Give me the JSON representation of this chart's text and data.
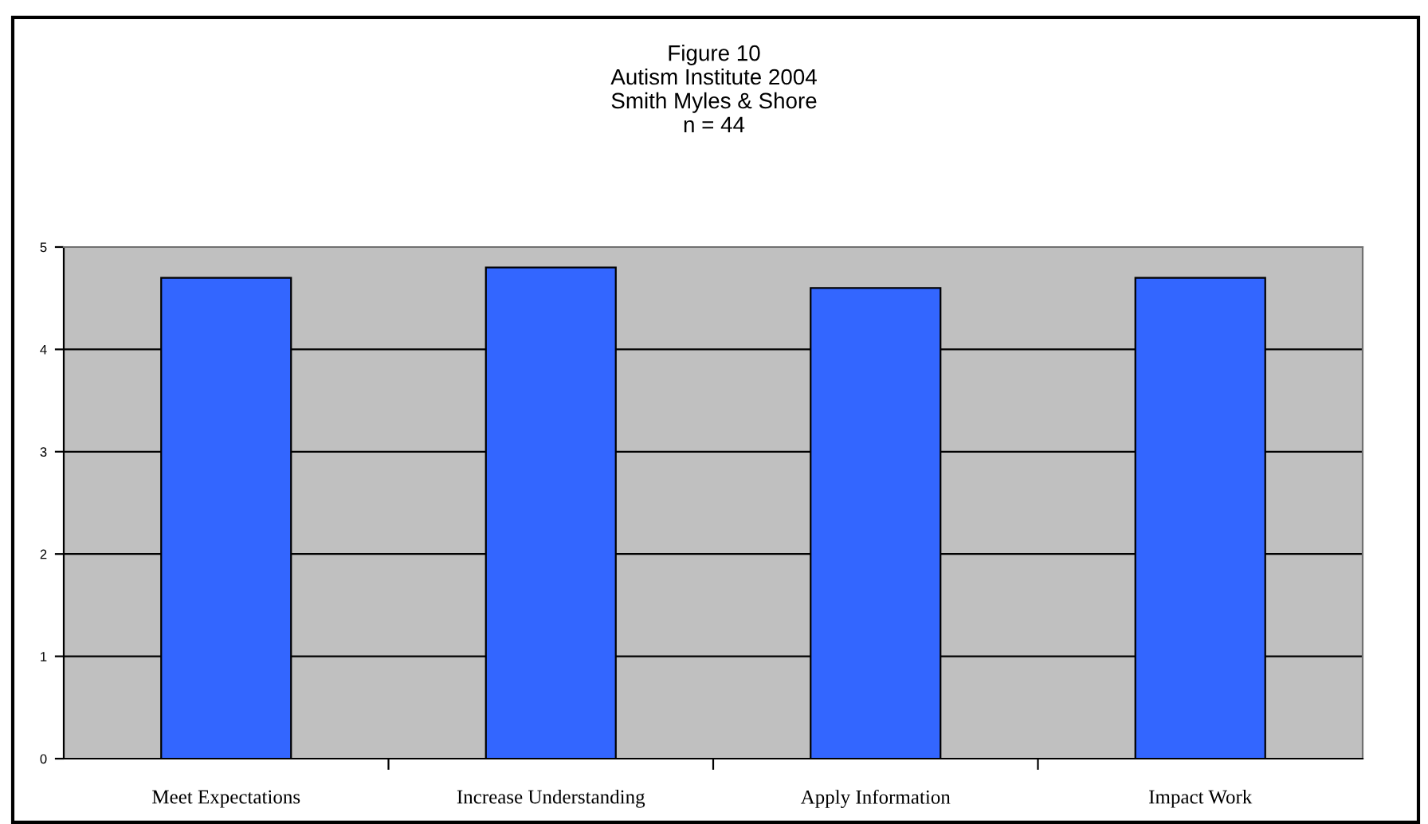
{
  "chart_data": {
    "type": "bar",
    "title": "Figure 10\nAutism Institute 2004\nSmith Myles & Shore\nn = 44",
    "categories": [
      "Meet Expectations",
      "Increase Understanding",
      "Apply Information",
      "Impact Work"
    ],
    "values": [
      4.7,
      4.8,
      4.6,
      4.7
    ],
    "color": "#3366ff",
    "ylim": [
      0,
      5
    ],
    "yticks": [
      0,
      1,
      2,
      3,
      4,
      5
    ],
    "grid": "y"
  }
}
